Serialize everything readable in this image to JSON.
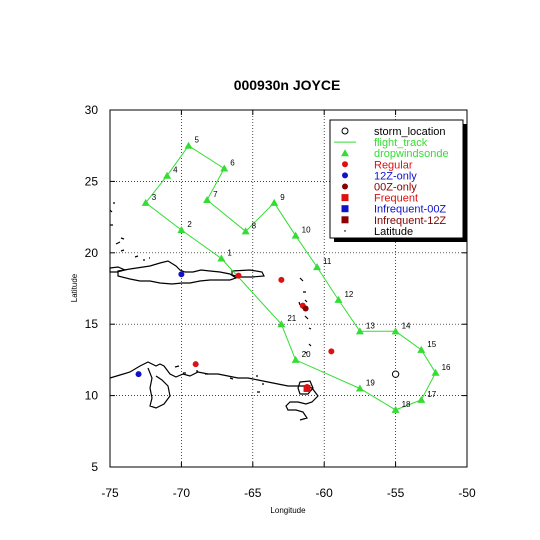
{
  "chart_data": {
    "type": "scatter",
    "title": "000930n JOYCE",
    "xlabel": "Longitude",
    "ylabel": "Latitude",
    "xlim": [
      -75,
      -50
    ],
    "ylim": [
      5,
      30
    ],
    "x_ticks": [
      -75,
      -70,
      -65,
      -60,
      -55,
      -50
    ],
    "y_ticks": [
      5,
      10,
      15,
      20,
      25,
      30
    ],
    "x_tick_labels": [
      "-75",
      "-70",
      "-65",
      "-60",
      "-55",
      "-50"
    ],
    "y_tick_labels": [
      "5",
      "10",
      "15",
      "20",
      "25",
      "30"
    ],
    "grid": true,
    "legend_position": "top-right",
    "legend": [
      {
        "label": "storm_location",
        "marker": "open-circle",
        "color": "#000000"
      },
      {
        "label": "flight_track",
        "marker": "line",
        "color": "#33dd33"
      },
      {
        "label": "dropwindsonde",
        "marker": "triangle",
        "color": "#33dd33"
      },
      {
        "label": "Regular",
        "marker": "circle",
        "color": "#dd1111"
      },
      {
        "label": "12Z-only",
        "marker": "circle",
        "color": "#1111cc"
      },
      {
        "label": "00Z-only",
        "marker": "circle",
        "color": "#880000"
      },
      {
        "label": "Frequent",
        "marker": "square",
        "color": "#dd1111"
      },
      {
        "label": "Infrequent-00Z",
        "marker": "square",
        "color": "#1111cc"
      },
      {
        "label": "Infrequent-12Z",
        "marker": "square",
        "color": "#880000"
      },
      {
        "label": "Latitude",
        "marker": "dot",
        "color": "#000000"
      }
    ],
    "storm_location": {
      "x": -55.0,
      "y": 11.5
    },
    "dropwindsondes": [
      {
        "label": "1",
        "x": -67.2,
        "y": 19.6
      },
      {
        "label": "2",
        "x": -70.0,
        "y": 21.6
      },
      {
        "label": "3",
        "x": -72.5,
        "y": 23.5
      },
      {
        "label": "4",
        "x": -71.0,
        "y": 25.4
      },
      {
        "label": "5",
        "x": -69.5,
        "y": 27.5
      },
      {
        "label": "6",
        "x": -67.0,
        "y": 25.9
      },
      {
        "label": "7",
        "x": -68.2,
        "y": 23.7
      },
      {
        "label": "8",
        "x": -65.5,
        "y": 21.5
      },
      {
        "label": "9",
        "x": -63.5,
        "y": 23.5
      },
      {
        "label": "10",
        "x": -62.0,
        "y": 21.2
      },
      {
        "label": "11",
        "x": -60.5,
        "y": 19.0
      },
      {
        "label": "12",
        "x": -59.0,
        "y": 16.7
      },
      {
        "label": "13",
        "x": -57.5,
        "y": 14.5
      },
      {
        "label": "14",
        "x": -55.0,
        "y": 14.5
      },
      {
        "label": "15",
        "x": -53.2,
        "y": 13.2
      },
      {
        "label": "16",
        "x": -52.2,
        "y": 11.6
      },
      {
        "label": "17",
        "x": -53.2,
        "y": 9.7
      },
      {
        "label": "18",
        "x": -55.0,
        "y": 9.0
      },
      {
        "label": "19",
        "x": -57.5,
        "y": 10.5
      },
      {
        "label": "20",
        "x": -62.0,
        "y": 12.5
      },
      {
        "label": "21",
        "x": -63.0,
        "y": 15.0
      }
    ],
    "flight_track_order": [
      "1",
      "2",
      "3",
      "4",
      "5",
      "6",
      "7",
      "8",
      "9",
      "10",
      "11",
      "12",
      "13",
      "14",
      "15",
      "16",
      "17",
      "18",
      "19",
      "20",
      "21",
      "1"
    ],
    "stations": [
      {
        "category": "Regular",
        "x": -66.0,
        "y": 18.4
      },
      {
        "category": "Regular",
        "x": -63.0,
        "y": 18.1
      },
      {
        "category": "Regular",
        "x": -61.5,
        "y": 16.3
      },
      {
        "category": "Regular",
        "x": -59.5,
        "y": 13.1
      },
      {
        "category": "Regular",
        "x": -69.0,
        "y": 12.2
      },
      {
        "category": "Regular",
        "x": -61.2,
        "y": 10.6
      },
      {
        "category": "12Z-only",
        "x": -70.0,
        "y": 18.5
      },
      {
        "category": "12Z-only",
        "x": -73.0,
        "y": 11.5
      },
      {
        "category": "00Z-only",
        "x": -61.3,
        "y": 16.1
      },
      {
        "category": "Frequent",
        "x": -61.2,
        "y": 10.5
      }
    ]
  }
}
